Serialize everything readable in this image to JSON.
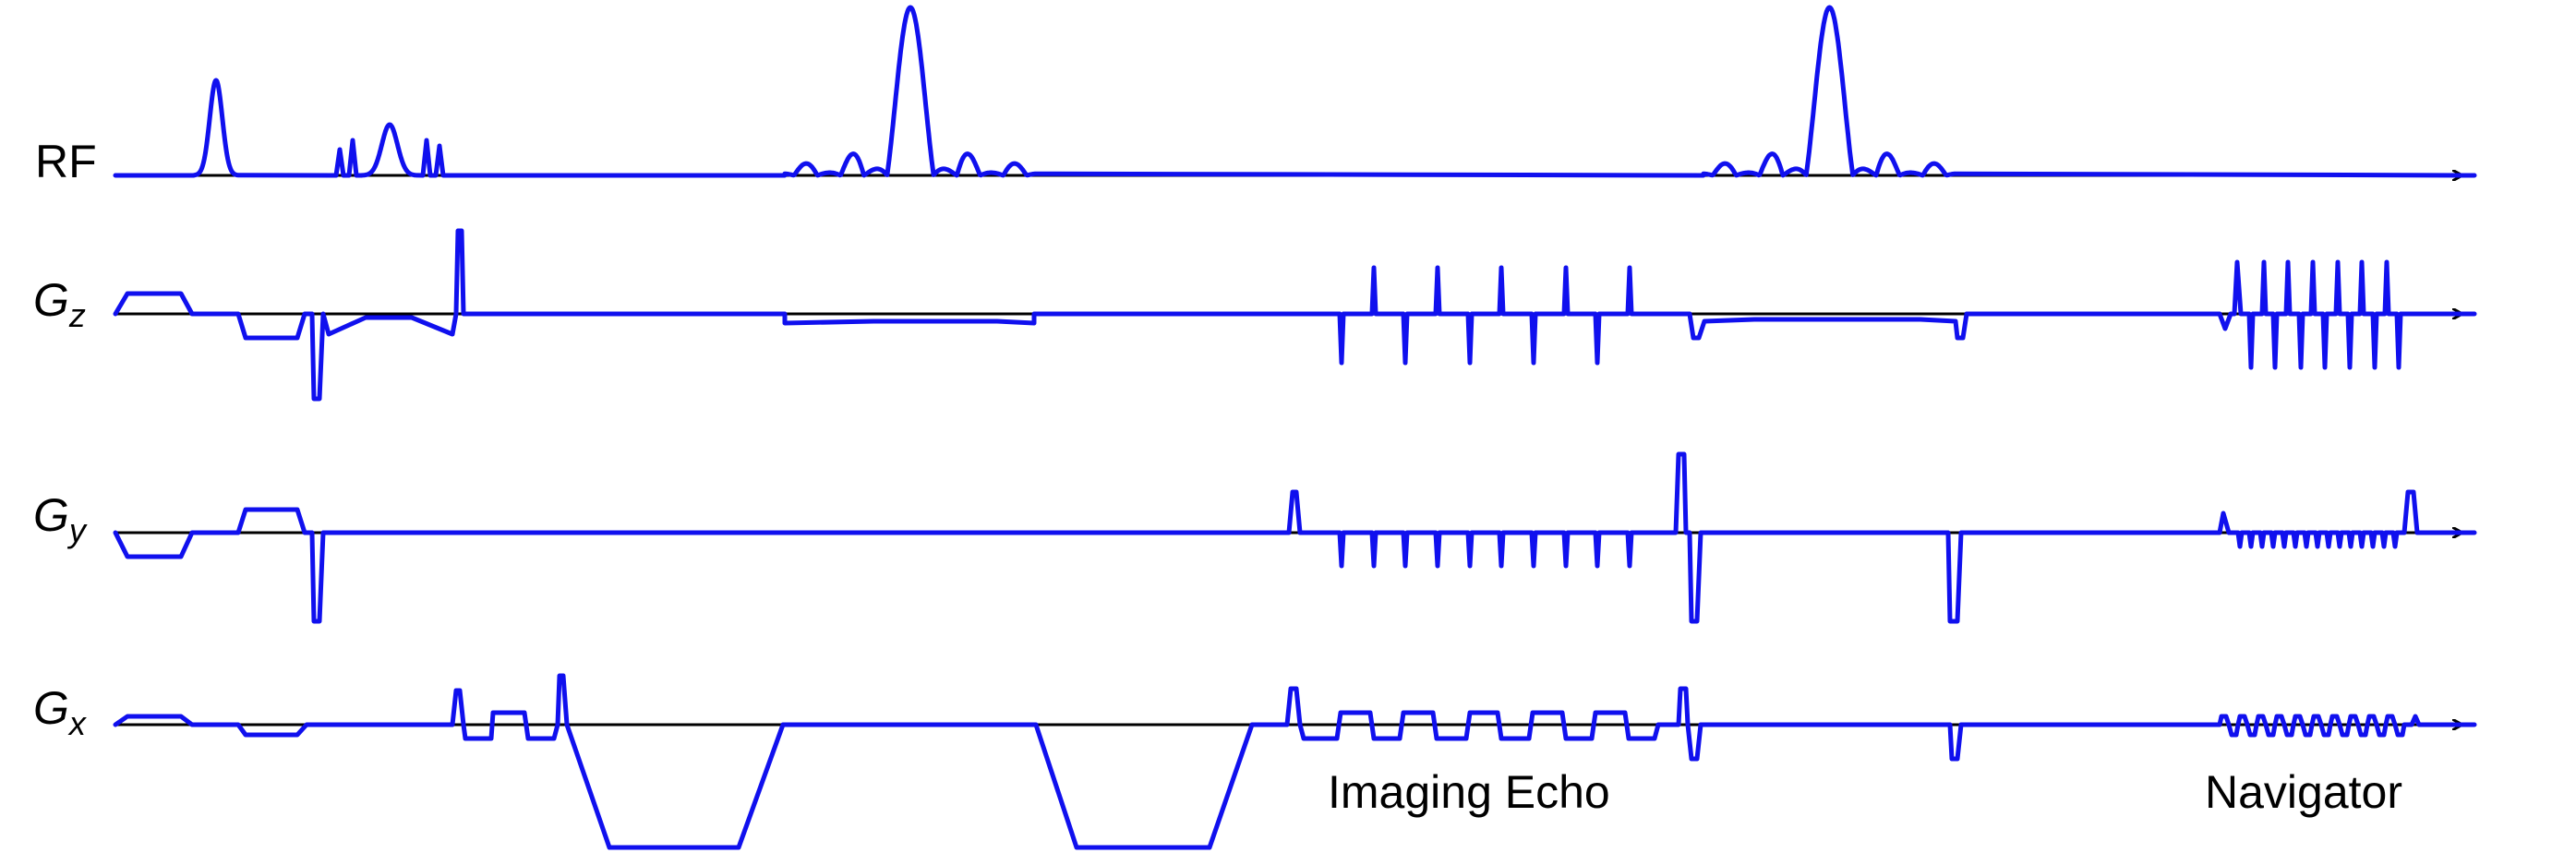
{
  "rows": [
    {
      "id": "rf",
      "label": "RF",
      "sub": ""
    },
    {
      "id": "gz",
      "label": "G",
      "sub": "z"
    },
    {
      "id": "gy",
      "label": "G",
      "sub": "y"
    },
    {
      "id": "gx",
      "label": "G",
      "sub": "x"
    }
  ],
  "annotations": {
    "imaging_echo": "Imaging Echo",
    "navigator": "Navigator"
  },
  "colors": {
    "waveform": "#1010ee",
    "axis": "#000000"
  }
}
